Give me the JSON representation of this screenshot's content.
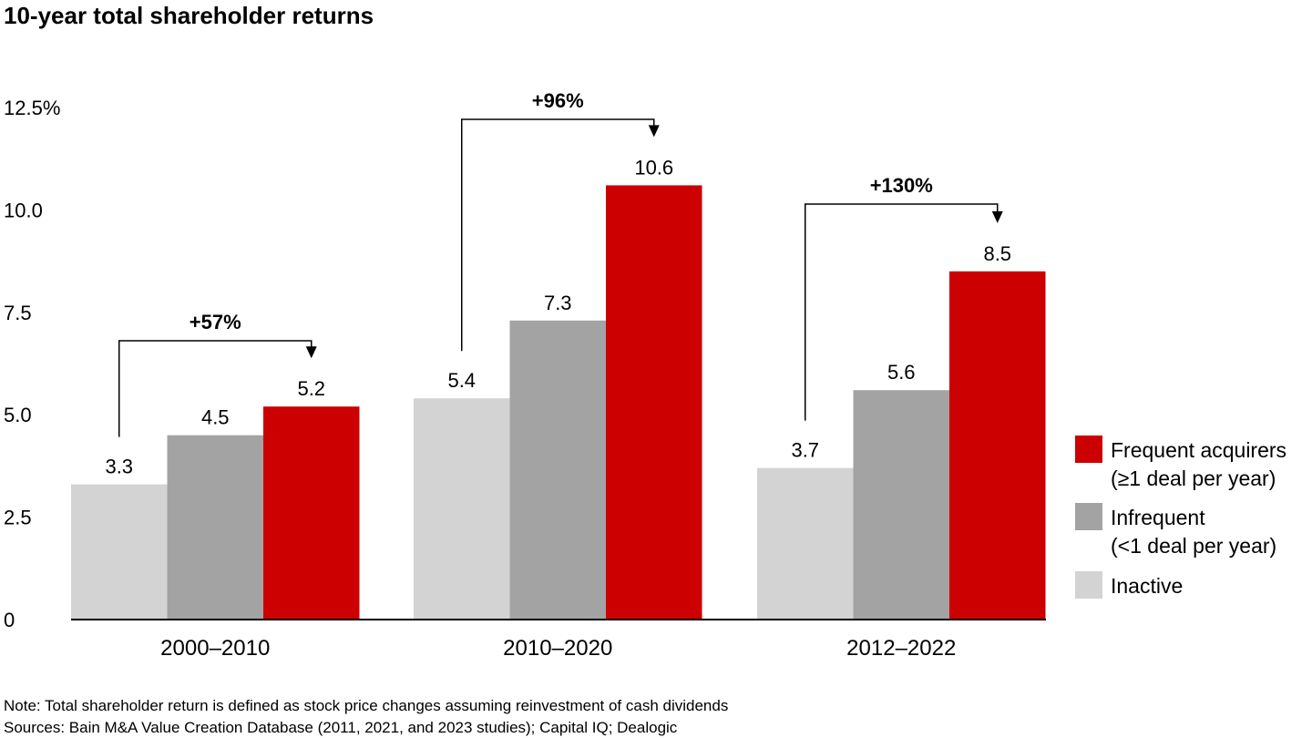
{
  "chart_data": {
    "type": "bar",
    "title": "10-year total shareholder returns",
    "categories": [
      "2000–2010",
      "2010–2020",
      "2012–2022"
    ],
    "series": [
      {
        "name": "Inactive",
        "color": "#d3d3d3",
        "values": [
          3.3,
          5.4,
          3.7
        ]
      },
      {
        "name": "Infrequent",
        "sublabel": "(<1 deal per year)",
        "color": "#a3a3a3",
        "values": [
          4.5,
          7.3,
          5.6
        ]
      },
      {
        "name": "Frequent acquirers",
        "sublabel": "(≥1 deal per year)",
        "color": "#cc0000",
        "values": [
          5.2,
          10.6,
          8.5
        ]
      }
    ],
    "value_labels": [
      [
        "3.3",
        "5.4",
        "3.7"
      ],
      [
        "4.5",
        "7.3",
        "5.6"
      ],
      [
        "5.2",
        "10.6",
        "8.5"
      ]
    ],
    "ylim": [
      0,
      12.5
    ],
    "yticks": [
      0,
      2.5,
      5.0,
      7.5,
      10.0,
      12.5
    ],
    "ytick_labels": [
      "0",
      "2.5",
      "5.0",
      "7.5",
      "10.0",
      "12.5%"
    ],
    "annotations": [
      "+57%",
      "+96%",
      "+130%"
    ],
    "legend_position": "right",
    "grid": false,
    "xlabel": "",
    "ylabel": ""
  },
  "notes": [
    "Note: Total shareholder return is defined as stock price changes assuming reinvestment of cash dividends",
    "Sources: Bain M&A Value Creation Database (2011, 2021, and 2023 studies); Capital IQ; Dealogic"
  ]
}
